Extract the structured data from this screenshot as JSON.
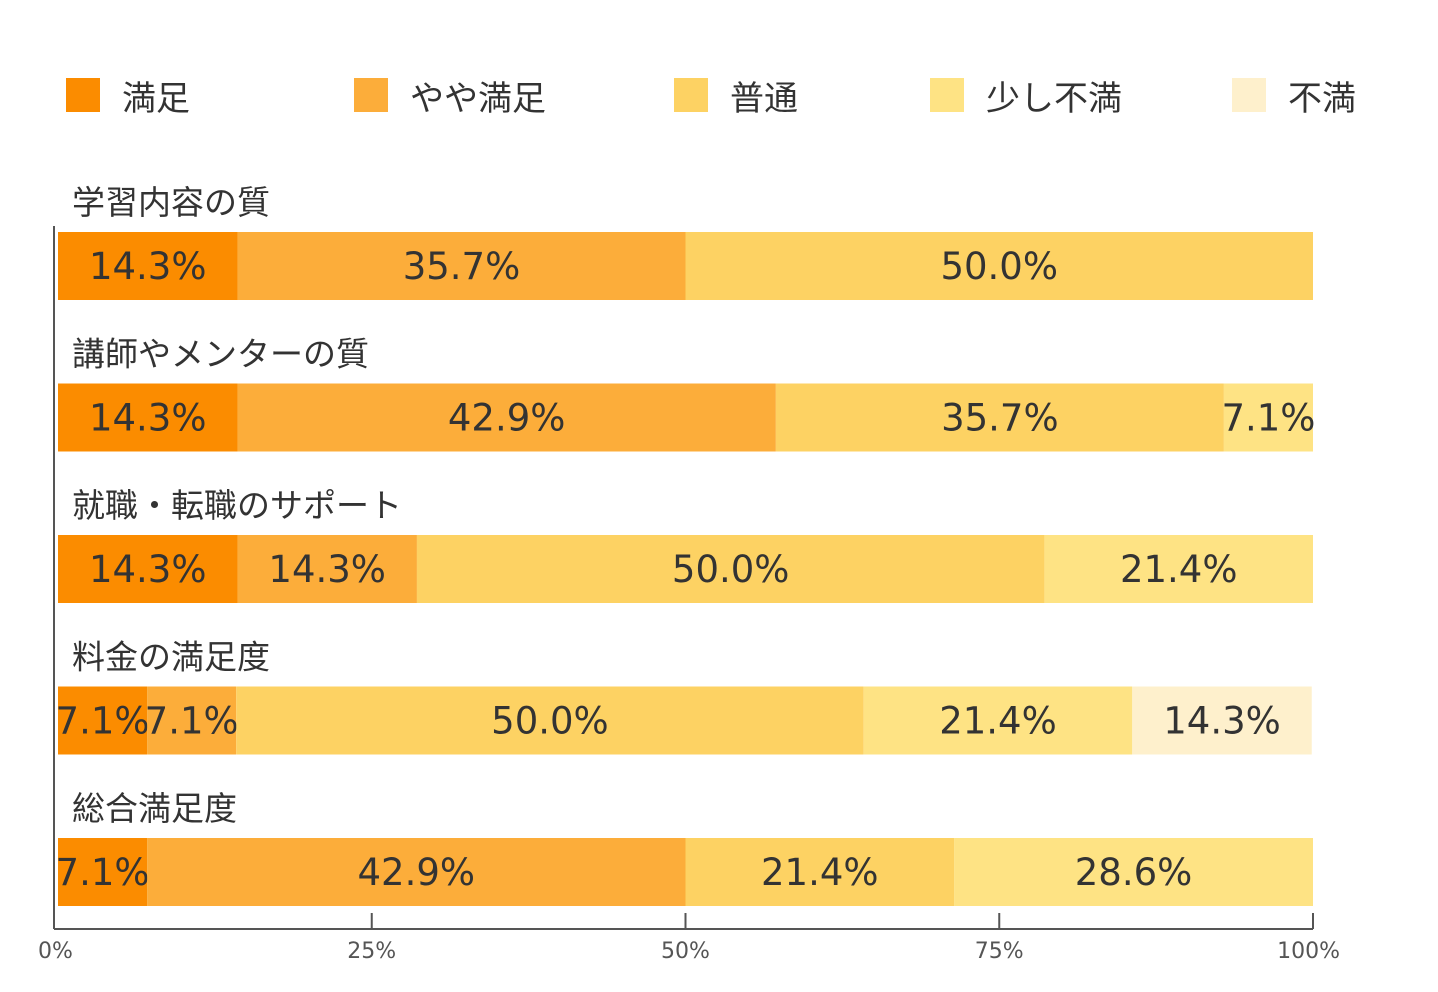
{
  "chart_data": {
    "type": "bar",
    "orientation": "horizontal",
    "stacked": true,
    "percent": true,
    "legend_position": "top",
    "series": [
      {
        "name": "満足",
        "color": "#FB8C00"
      },
      {
        "name": "やや満足",
        "color": "#FCAD3A"
      },
      {
        "name": "普通",
        "color": "#FDD263"
      },
      {
        "name": "少し不満",
        "color": "#FEE384"
      },
      {
        "name": "不満",
        "color": "#FEF0CC"
      }
    ],
    "categories": [
      "学習内容の質",
      "講師やメンターの質",
      "就職・転職のサポート",
      "料金の満足度",
      "総合満足度"
    ],
    "values": [
      [
        14.3,
        35.7,
        50.0,
        0,
        0
      ],
      [
        14.3,
        42.9,
        35.7,
        7.1,
        0
      ],
      [
        14.3,
        14.3,
        50.0,
        21.4,
        0
      ],
      [
        7.1,
        7.1,
        50.0,
        21.4,
        14.3
      ],
      [
        7.1,
        42.9,
        21.4,
        28.6,
        0
      ]
    ],
    "labels": [
      [
        "14.3%",
        "35.7%",
        "50.0%",
        "",
        ""
      ],
      [
        "14.3%",
        "42.9%",
        "35.7%",
        "7.1%",
        ""
      ],
      [
        "14.3%",
        "14.3%",
        "50.0%",
        "21.4%",
        ""
      ],
      [
        "7.1%",
        "7.1%",
        "50.0%",
        "21.4%",
        "14.3%"
      ],
      [
        "7.1%",
        "42.9%",
        "21.4%",
        "28.6%",
        ""
      ]
    ],
    "x_ticks": [
      0,
      25,
      50,
      75,
      100
    ],
    "x_tick_labels": [
      "0%",
      "25%",
      "50%",
      "75%",
      "100%"
    ],
    "xlim": [
      0,
      100
    ]
  }
}
